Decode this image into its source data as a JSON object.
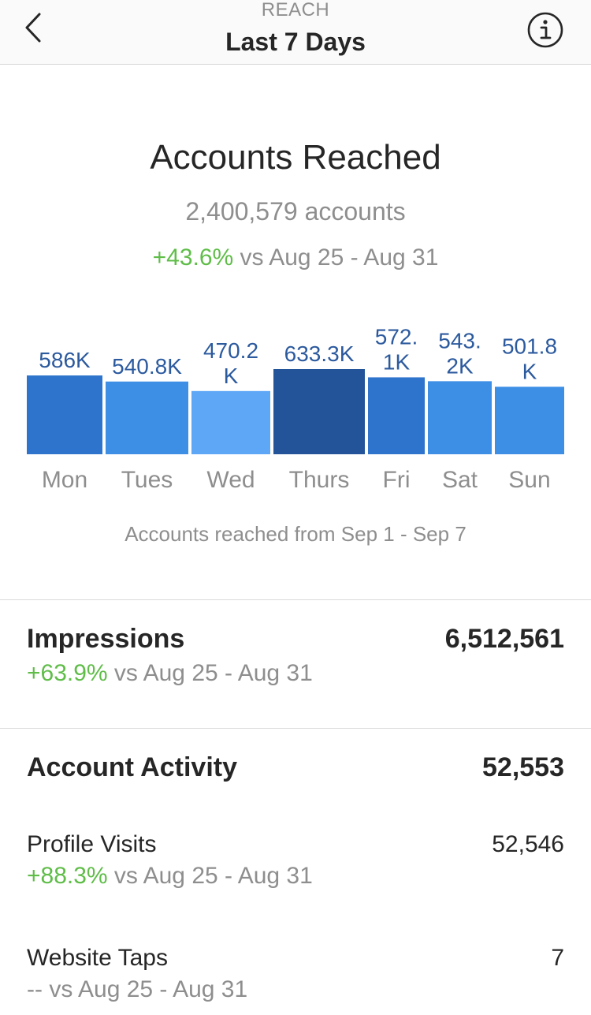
{
  "header": {
    "eyebrow": "REACH",
    "title": "Last 7 Days",
    "back_icon": "chevron-left-icon",
    "info_icon": "info-circle-icon"
  },
  "reach": {
    "title": "Accounts Reached",
    "count": "2,400,579 accounts",
    "change": "+43.6%",
    "compare": " vs Aug 25 - Aug 31"
  },
  "chart_data": {
    "type": "bar",
    "categories": [
      "Mon",
      "Tues",
      "Wed",
      "Thurs",
      "Fri",
      "Sat",
      "Sun"
    ],
    "values": [
      586000,
      540800,
      470200,
      633300,
      572100,
      543200,
      501800
    ],
    "data_labels": [
      [
        "586K"
      ],
      [
        "540.8K"
      ],
      [
        "470.2",
        "K"
      ],
      [
        "633.3K"
      ],
      [
        "572.",
        "1K"
      ],
      [
        "543.",
        "2K"
      ],
      [
        "501.8",
        "K"
      ]
    ],
    "colors": [
      "#2f74cc",
      "#3d8ee5",
      "#5ea7f7",
      "#235499",
      "#2f74cc",
      "#3d8ee5",
      "#3d8ee5"
    ],
    "label_color": "#2c5a9e",
    "caption": "Accounts reached from Sep 1 - Sep 7"
  },
  "impressions": {
    "title": "Impressions",
    "value": "6,512,561",
    "change": "+63.9%",
    "compare": " vs Aug 25 - Aug 31"
  },
  "activity": {
    "title": "Account Activity",
    "value": "52,553",
    "items": [
      {
        "label": "Profile Visits",
        "value": "52,546",
        "change": "+88.3%",
        "compare": " vs Aug 25 - Aug 31"
      },
      {
        "label": "Website Taps",
        "value": "7",
        "change": "--",
        "compare": " vs Aug 25 - Aug 31"
      }
    ]
  },
  "colors": {
    "positive": "#5fbd48",
    "muted": "#8e8e8e",
    "text": "#262626"
  }
}
